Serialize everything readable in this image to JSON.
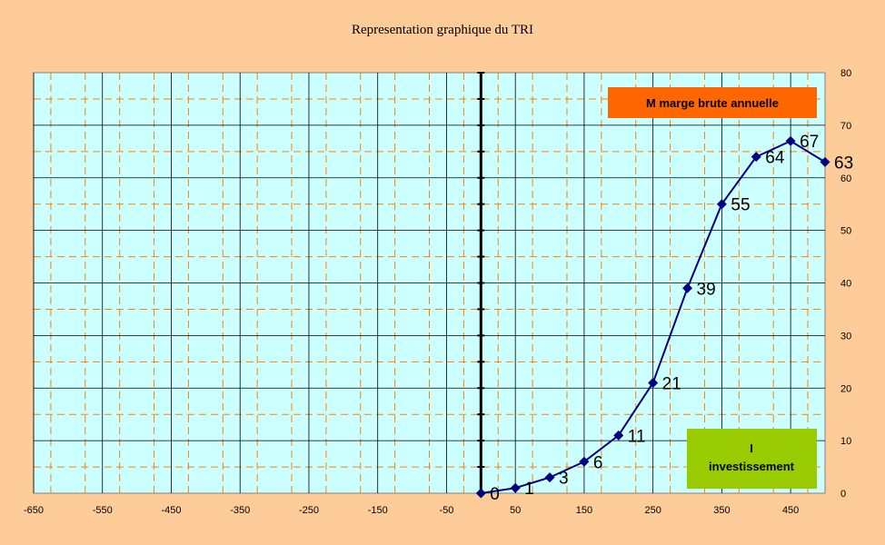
{
  "colors": {
    "background": "#fecc99",
    "plot_area": "#ccffff",
    "major_grid": "#000000",
    "minor_grid": "#ff8000",
    "series": "#000080",
    "box_orange": "#ff6600",
    "box_green": "#99cc00"
  },
  "chart_data": {
    "type": "line",
    "title": "Representation graphique du TRI",
    "xlabel": "",
    "ylabel": "",
    "xlim": [
      -650,
      500
    ],
    "ylim": [
      0,
      80
    ],
    "x_ticks": [
      -650,
      -550,
      -450,
      -350,
      -250,
      -150,
      -50,
      50,
      150,
      250,
      350,
      450
    ],
    "y_ticks": [
      0,
      10,
      20,
      30,
      40,
      50,
      60,
      70,
      80
    ],
    "y_axis_side": "right",
    "grid": true,
    "marker": "diamond",
    "series": [
      {
        "x": [
          0,
          50,
          100,
          150,
          200,
          250,
          300,
          350,
          400,
          450,
          500
        ],
        "values": [
          0,
          1,
          3,
          6,
          11,
          21,
          39,
          55,
          64,
          67,
          63
        ],
        "labels": [
          "0",
          "1",
          "3",
          "6",
          "11",
          "21",
          "39",
          "55",
          "64",
          "67",
          "63"
        ]
      }
    ],
    "annotations": {
      "margin_box": "M marge brute annuelle",
      "invest_box_line1": "I",
      "invest_box_line2": "investissement"
    }
  }
}
